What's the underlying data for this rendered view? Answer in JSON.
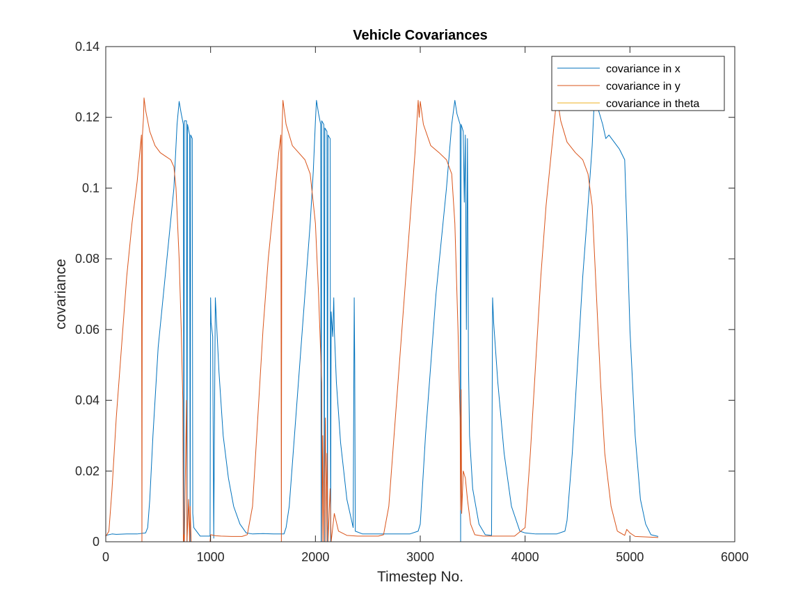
{
  "chart_data": {
    "type": "line",
    "title": "Vehicle Covariances",
    "xlabel": "Timestep No.",
    "ylabel": "covariance",
    "xlim": [
      0,
      6000
    ],
    "ylim": [
      0,
      0.14
    ],
    "xticks": [
      0,
      1000,
      2000,
      3000,
      4000,
      5000,
      6000
    ],
    "xtick_labels": [
      "0",
      "1000",
      "2000",
      "3000",
      "4000",
      "5000",
      "6000"
    ],
    "yticks": [
      0,
      0.02,
      0.04,
      0.06,
      0.08,
      0.1,
      0.12,
      0.14
    ],
    "ytick_labels": [
      "0",
      "0.02",
      "0.04",
      "0.06",
      "0.08",
      "0.1",
      "0.12",
      "0.14"
    ],
    "grid": false,
    "legend": "top-right",
    "series": [
      {
        "name": "covariance in x",
        "color": "#0072BD",
        "points": [
          [
            0,
            0.0018
          ],
          [
            60,
            0.0022
          ],
          [
            100,
            0.0021
          ],
          [
            200,
            0.0022
          ],
          [
            300,
            0.0022
          ],
          [
            380,
            0.0025
          ],
          [
            400,
            0.004
          ],
          [
            420,
            0.012
          ],
          [
            450,
            0.03
          ],
          [
            500,
            0.055
          ],
          [
            550,
            0.07
          ],
          [
            600,
            0.085
          ],
          [
            650,
            0.1
          ],
          [
            680,
            0.118
          ],
          [
            700,
            0.1245
          ],
          [
            720,
            0.121
          ],
          [
            740,
            0.118
          ],
          [
            745,
            0.0
          ],
          [
            750,
            0.119
          ],
          [
            770,
            0.119
          ],
          [
            775,
            0.0
          ],
          [
            780,
            0.118
          ],
          [
            800,
            0.115
          ],
          [
            805,
            0.0
          ],
          [
            810,
            0.115
          ],
          [
            825,
            0.114
          ],
          [
            830,
            0.008
          ],
          [
            840,
            0.004
          ],
          [
            900,
            0.0016
          ],
          [
            995,
            0.0016
          ],
          [
            1000,
            0.069
          ],
          [
            1005,
            0.062
          ],
          [
            1020,
            0.058
          ],
          [
            1030,
            0.001
          ],
          [
            1045,
            0.069
          ],
          [
            1050,
            0.066
          ],
          [
            1080,
            0.048
          ],
          [
            1120,
            0.03
          ],
          [
            1170,
            0.018
          ],
          [
            1220,
            0.01
          ],
          [
            1280,
            0.005
          ],
          [
            1340,
            0.0025
          ],
          [
            1400,
            0.0022
          ],
          [
            1500,
            0.0023
          ],
          [
            1600,
            0.0022
          ],
          [
            1700,
            0.0022
          ],
          [
            1720,
            0.004
          ],
          [
            1750,
            0.01
          ],
          [
            1800,
            0.03
          ],
          [
            1850,
            0.05
          ],
          [
            1900,
            0.07
          ],
          [
            1950,
            0.09
          ],
          [
            1980,
            0.105
          ],
          [
            2000,
            0.119
          ],
          [
            2010,
            0.1248
          ],
          [
            2030,
            0.121
          ],
          [
            2050,
            0.118
          ],
          [
            2055,
            0.0
          ],
          [
            2060,
            0.119
          ],
          [
            2080,
            0.118
          ],
          [
            2085,
            0.0
          ],
          [
            2090,
            0.117
          ],
          [
            2110,
            0.116
          ],
          [
            2115,
            0.0
          ],
          [
            2120,
            0.115
          ],
          [
            2140,
            0.114
          ],
          [
            2145,
            0.0
          ],
          [
            2150,
            0.065
          ],
          [
            2165,
            0.058
          ],
          [
            2175,
            0.069
          ],
          [
            2180,
            0.06
          ],
          [
            2200,
            0.045
          ],
          [
            2240,
            0.028
          ],
          [
            2300,
            0.012
          ],
          [
            2360,
            0.004
          ],
          [
            2370,
            0.069
          ],
          [
            2375,
            0.05
          ],
          [
            2380,
            0.003
          ],
          [
            2450,
            0.0022
          ],
          [
            2600,
            0.0022
          ],
          [
            2700,
            0.0022
          ],
          [
            2800,
            0.0022
          ],
          [
            2900,
            0.0022
          ],
          [
            2980,
            0.003
          ],
          [
            3000,
            0.005
          ],
          [
            3050,
            0.03
          ],
          [
            3100,
            0.05
          ],
          [
            3150,
            0.07
          ],
          [
            3200,
            0.085
          ],
          [
            3250,
            0.1
          ],
          [
            3300,
            0.118
          ],
          [
            3330,
            0.1248
          ],
          [
            3350,
            0.121
          ],
          [
            3380,
            0.118
          ],
          [
            3385,
            0.0
          ],
          [
            3390,
            0.118
          ],
          [
            3410,
            0.116
          ],
          [
            3420,
            0.096
          ],
          [
            3430,
            0.115
          ],
          [
            3440,
            0.06
          ],
          [
            3450,
            0.114
          ],
          [
            3460,
            0.05
          ],
          [
            3470,
            0.03
          ],
          [
            3500,
            0.015
          ],
          [
            3560,
            0.005
          ],
          [
            3620,
            0.002
          ],
          [
            3680,
            0.0018
          ],
          [
            3690,
            0.069
          ],
          [
            3700,
            0.062
          ],
          [
            3740,
            0.045
          ],
          [
            3800,
            0.025
          ],
          [
            3870,
            0.01
          ],
          [
            3950,
            0.003
          ],
          [
            4000,
            0.0025
          ],
          [
            4100,
            0.0022
          ],
          [
            4200,
            0.0022
          ],
          [
            4300,
            0.0022
          ],
          [
            4380,
            0.003
          ],
          [
            4400,
            0.006
          ],
          [
            4450,
            0.025
          ],
          [
            4500,
            0.05
          ],
          [
            4550,
            0.075
          ],
          [
            4600,
            0.095
          ],
          [
            4640,
            0.112
          ],
          [
            4660,
            0.1248
          ],
          [
            4700,
            0.122
          ],
          [
            4740,
            0.118
          ],
          [
            4770,
            0.114
          ],
          [
            4800,
            0.115
          ],
          [
            4850,
            0.113
          ],
          [
            4900,
            0.111
          ],
          [
            4950,
            0.108
          ],
          [
            4970,
            0.09
          ],
          [
            5000,
            0.06
          ],
          [
            5050,
            0.03
          ],
          [
            5100,
            0.012
          ],
          [
            5150,
            0.005
          ],
          [
            5200,
            0.002
          ],
          [
            5270,
            0.0015
          ]
        ]
      },
      {
        "name": "covariance in y",
        "color": "#D95319",
        "points": [
          [
            0,
            0.0015
          ],
          [
            30,
            0.003
          ],
          [
            60,
            0.015
          ],
          [
            100,
            0.035
          ],
          [
            150,
            0.055
          ],
          [
            200,
            0.075
          ],
          [
            250,
            0.09
          ],
          [
            300,
            0.102
          ],
          [
            340,
            0.115
          ],
          [
            345,
            0.0
          ],
          [
            350,
            0.115
          ],
          [
            360,
            0.12
          ],
          [
            365,
            0.1255
          ],
          [
            380,
            0.122
          ],
          [
            420,
            0.116
          ],
          [
            470,
            0.112
          ],
          [
            520,
            0.11
          ],
          [
            570,
            0.109
          ],
          [
            620,
            0.108
          ],
          [
            650,
            0.106
          ],
          [
            670,
            0.1
          ],
          [
            700,
            0.08
          ],
          [
            720,
            0.06
          ],
          [
            735,
            0.04
          ],
          [
            740,
            0.0
          ],
          [
            745,
            0.002
          ],
          [
            750,
            0.0
          ],
          [
            770,
            0.04
          ],
          [
            775,
            0.0
          ],
          [
            790,
            0.012
          ],
          [
            800,
            0.0
          ],
          [
            805,
            0.01
          ],
          [
            815,
            0.0
          ],
          [
            900,
            0.0
          ],
          [
            995,
            0.0
          ],
          [
            1000,
            0.002
          ],
          [
            1050,
            0.0017
          ],
          [
            1100,
            0.0016
          ],
          [
            1200,
            0.0015
          ],
          [
            1300,
            0.0015
          ],
          [
            1350,
            0.002
          ],
          [
            1400,
            0.01
          ],
          [
            1450,
            0.035
          ],
          [
            1500,
            0.06
          ],
          [
            1550,
            0.08
          ],
          [
            1600,
            0.095
          ],
          [
            1650,
            0.11
          ],
          [
            1670,
            0.115
          ],
          [
            1675,
            0.0
          ],
          [
            1680,
            0.115
          ],
          [
            1690,
            0.1248
          ],
          [
            1720,
            0.118
          ],
          [
            1780,
            0.112
          ],
          [
            1840,
            0.11
          ],
          [
            1900,
            0.108
          ],
          [
            1950,
            0.104
          ],
          [
            2000,
            0.09
          ],
          [
            2030,
            0.07
          ],
          [
            2060,
            0.045
          ],
          [
            2065,
            0.0
          ],
          [
            2070,
            0.03
          ],
          [
            2080,
            0.0
          ],
          [
            2095,
            0.035
          ],
          [
            2100,
            0.0
          ],
          [
            2110,
            0.025
          ],
          [
            2120,
            0.0
          ],
          [
            2140,
            0.015
          ],
          [
            2150,
            0.0
          ],
          [
            2180,
            0.008
          ],
          [
            2220,
            0.003
          ],
          [
            2300,
            0.0018
          ],
          [
            2400,
            0.0016
          ],
          [
            2500,
            0.0016
          ],
          [
            2600,
            0.0016
          ],
          [
            2650,
            0.002
          ],
          [
            2700,
            0.01
          ],
          [
            2750,
            0.03
          ],
          [
            2800,
            0.05
          ],
          [
            2850,
            0.07
          ],
          [
            2900,
            0.09
          ],
          [
            2950,
            0.11
          ],
          [
            2980,
            0.1248
          ],
          [
            2990,
            0.12
          ],
          [
            3000,
            0.1245
          ],
          [
            3030,
            0.118
          ],
          [
            3100,
            0.112
          ],
          [
            3180,
            0.11
          ],
          [
            3250,
            0.108
          ],
          [
            3300,
            0.104
          ],
          [
            3330,
            0.09
          ],
          [
            3360,
            0.06
          ],
          [
            3380,
            0.035
          ],
          [
            3385,
            0.009
          ],
          [
            3390,
            0.043
          ],
          [
            3395,
            0.008
          ],
          [
            3410,
            0.02
          ],
          [
            3430,
            0.018
          ],
          [
            3450,
            0.012
          ],
          [
            3480,
            0.005
          ],
          [
            3520,
            0.002
          ],
          [
            3600,
            0.0016
          ],
          [
            3700,
            0.0016
          ],
          [
            3800,
            0.0016
          ],
          [
            3900,
            0.0016
          ],
          [
            4000,
            0.004
          ],
          [
            4050,
            0.025
          ],
          [
            4100,
            0.05
          ],
          [
            4150,
            0.075
          ],
          [
            4200,
            0.095
          ],
          [
            4250,
            0.11
          ],
          [
            4290,
            0.122
          ],
          [
            4310,
            0.1248
          ],
          [
            4340,
            0.119
          ],
          [
            4400,
            0.113
          ],
          [
            4480,
            0.11
          ],
          [
            4550,
            0.108
          ],
          [
            4600,
            0.104
          ],
          [
            4640,
            0.095
          ],
          [
            4680,
            0.07
          ],
          [
            4720,
            0.045
          ],
          [
            4760,
            0.025
          ],
          [
            4820,
            0.01
          ],
          [
            4880,
            0.003
          ],
          [
            4950,
            0.0018
          ],
          [
            4970,
            0.0035
          ],
          [
            5000,
            0.0025
          ],
          [
            5050,
            0.0015
          ],
          [
            5270,
            0.0012
          ]
        ]
      },
      {
        "name": "covariance in theta",
        "color": "#EDB120",
        "points": [
          [
            0,
            0.0
          ],
          [
            5270,
            0.0
          ]
        ]
      }
    ]
  }
}
